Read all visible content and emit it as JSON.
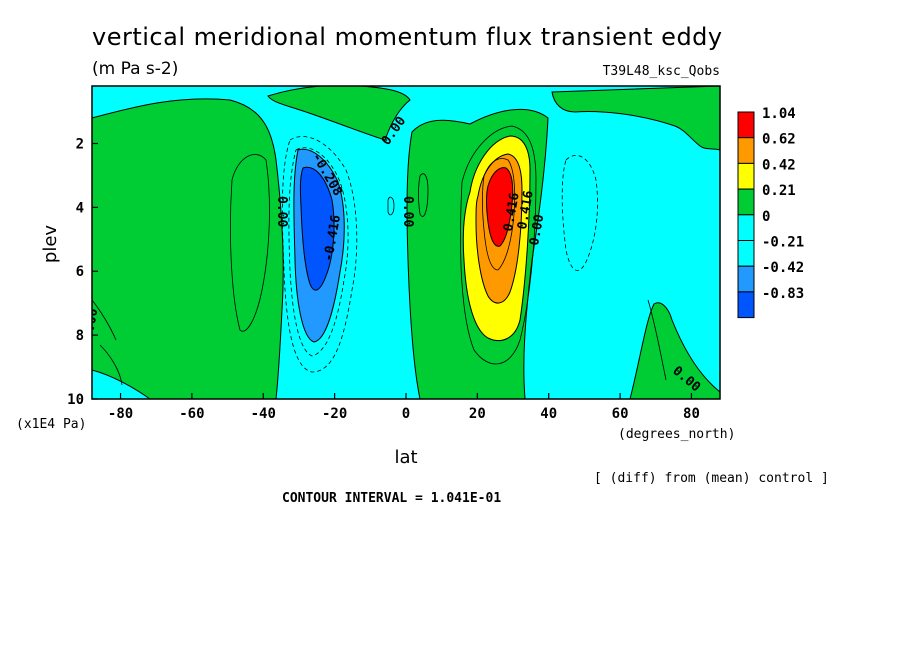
{
  "header": {
    "title": "vertical meridional momentum flux transient eddy",
    "units": "(m Pa s-2)",
    "run": "T39L48_ksc_Qobs"
  },
  "footer": {
    "diff_note": "[ (diff) from (mean) control ]",
    "contour_interval": "CONTOUR INTERVAL = 1.041E-01"
  },
  "chart_data": {
    "type": "heatmap",
    "title": "vertical meridional momentum flux transient eddy",
    "units": "(m Pa s-2)",
    "xlabel": "lat",
    "x_unit_label": "(degrees_north)",
    "ylabel": "plev",
    "y_unit_label": "(x1E4 Pa)",
    "xlim": [
      -88,
      88
    ],
    "ylim": [
      10,
      0.2
    ],
    "x_ticks": [
      -80,
      -60,
      -40,
      -20,
      0,
      20,
      40,
      60,
      80
    ],
    "x_tick_labels": [
      "-80",
      "-60",
      "-40",
      "-20",
      "0",
      "20",
      "40",
      "60",
      "80"
    ],
    "y_ticks": [
      2,
      4,
      6,
      8,
      10
    ],
    "y_tick_labels": [
      "2",
      "4",
      "6",
      "8",
      "10"
    ],
    "contour_interval": 0.1041,
    "colorbar": {
      "levels": [
        "1.04",
        "0.62",
        "0.42",
        "0.21",
        "0",
        "-0.21",
        "-0.42",
        "-0.83"
      ],
      "colors": [
        "#ff0000",
        "#ff9900",
        "#ffff00",
        "#00cc33",
        "#00ffff",
        "#00ffff",
        "#2299ff",
        "#0055ff"
      ]
    },
    "contour_labels": [
      "0.00",
      "0.00",
      "0.00",
      "0.00",
      "0.00",
      "0.00",
      "-0.208",
      "-0.416",
      "0.416",
      "0.416"
    ],
    "features": [
      {
        "name": "negative_core",
        "lat": -25,
        "plev": 4.5,
        "value": -0.83
      },
      {
        "name": "positive_core",
        "lat": 26,
        "plev": 3.8,
        "value": 1.04
      }
    ]
  }
}
